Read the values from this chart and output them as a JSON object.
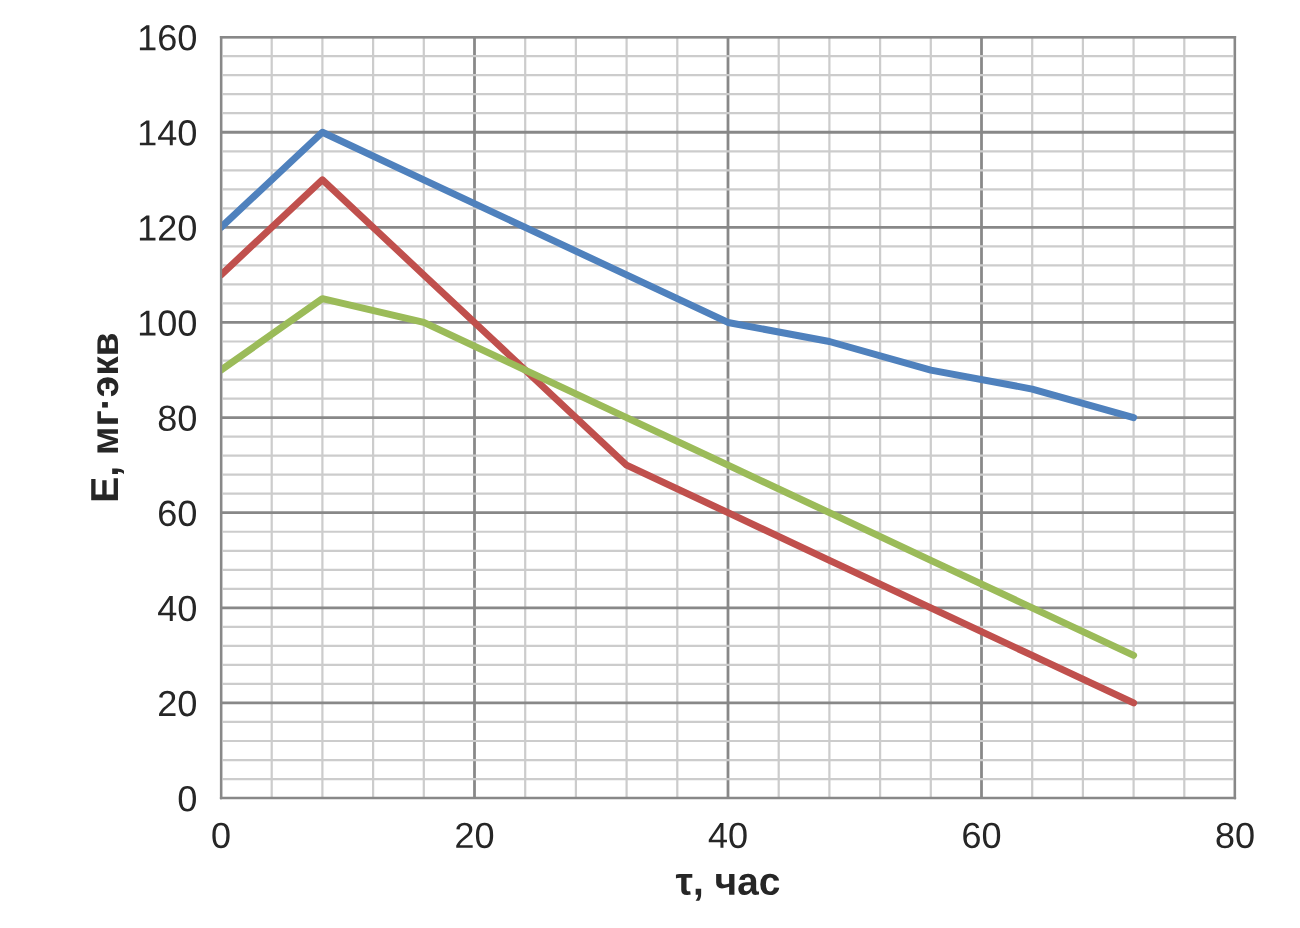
{
  "chart_data": {
    "type": "line",
    "xlabel": "τ, час",
    "ylabel": "E, мг·экв",
    "x": [
      0,
      8,
      16,
      24,
      32,
      40,
      48,
      56,
      64,
      72
    ],
    "series": [
      {
        "color": "#4f81bd",
        "values": [
          120,
          140,
          130,
          120,
          110,
          100,
          96,
          90,
          86,
          80
        ]
      },
      {
        "color": "#c0504d",
        "values": [
          110,
          130,
          110,
          90,
          70,
          60,
          50,
          40,
          30,
          20
        ]
      },
      {
        "color": "#9bbb59",
        "values": [
          90,
          105,
          100,
          90,
          80,
          70,
          60,
          50,
          40,
          30
        ]
      }
    ],
    "xlim": [
      0,
      80
    ],
    "xticks": [
      0,
      20,
      40,
      60,
      80
    ],
    "ylim": [
      0,
      160
    ],
    "yticks": [
      0,
      20,
      40,
      60,
      80,
      100,
      120,
      140,
      160
    ],
    "grid": true,
    "marker": "none",
    "line_style": "solid"
  }
}
